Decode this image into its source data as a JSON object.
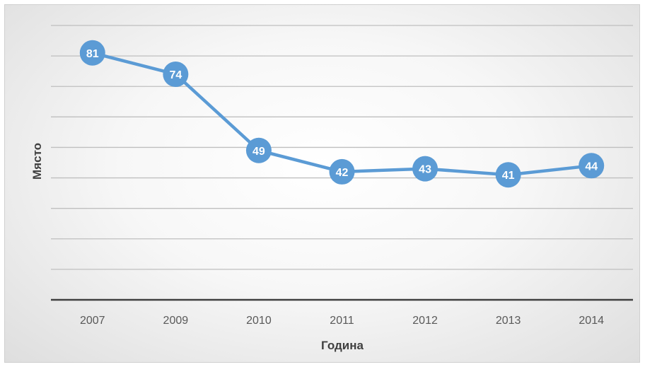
{
  "chart_data": {
    "type": "line",
    "categories": [
      "2007",
      "2009",
      "2010",
      "2011",
      "2012",
      "2013",
      "2014"
    ],
    "series": [
      {
        "values": [
          81,
          74,
          49,
          42,
          43,
          41,
          44
        ]
      }
    ],
    "data_labels": [
      "81",
      "74",
      "49",
      "42",
      "43",
      "41",
      "44"
    ],
    "xlabel": "Година",
    "ylabel": "Място",
    "ylim": [
      0,
      90
    ],
    "y_ticks_shown": false,
    "grid": true,
    "legend": "none",
    "colors": {
      "series": "#5b9bd5",
      "label_text": "#ffffff",
      "gridline": "#bfbfbf",
      "baseline": "#404040"
    }
  }
}
